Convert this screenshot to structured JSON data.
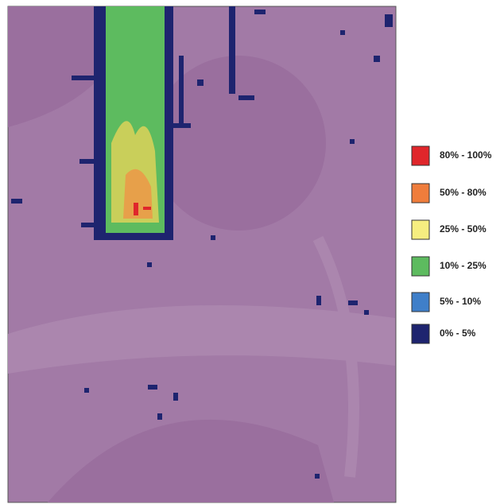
{
  "legend": {
    "items": [
      {
        "label": "80% - 100%",
        "color": "#e0262b"
      },
      {
        "label": "50% - 80%",
        "color": "#ef7d3c"
      },
      {
        "label": "25% - 50%",
        "color": "#f6ee80"
      },
      {
        "label": "10% - 25%",
        "color": "#5dbb5f"
      },
      {
        "label": "5% - 10%",
        "color": "#3f7fc9"
      },
      {
        "label": "0% - 5%",
        "color": "#1e246f"
      }
    ]
  }
}
